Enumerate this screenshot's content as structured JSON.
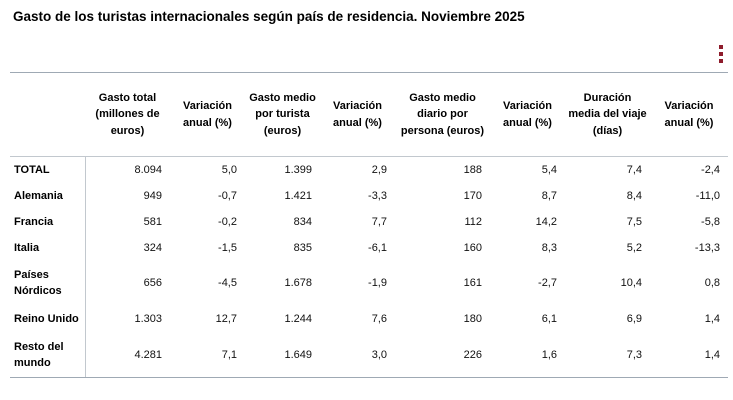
{
  "header": {
    "title": "Gasto de los turistas internacionales según país de residencia. Noviembre 2025",
    "menu_icon": "kebab-menu-icon",
    "accent_color": "#8e1c2c"
  },
  "chart_data": {
    "type": "table",
    "title": "Gasto de los turistas internacionales según país de residencia. Noviembre 2025",
    "columns": [
      "",
      "Gasto total (millones de euros)",
      "Variación anual (%)",
      "Gasto medio por turista (euros)",
      "Variación anual (%)",
      "Gasto medio diario por persona (euros)",
      "Variación anual (%)",
      "Duración media del viaje (días)",
      "Variación anual (%)"
    ],
    "rows": [
      {
        "label": "TOTAL",
        "values": [
          "8.094",
          "5,0",
          "1.399",
          "2,9",
          "188",
          "5,4",
          "7,4",
          "-2,4"
        ]
      },
      {
        "label": "Alemania",
        "values": [
          "949",
          "-0,7",
          "1.421",
          "-3,3",
          "170",
          "8,7",
          "8,4",
          "-11,0"
        ]
      },
      {
        "label": "Francia",
        "values": [
          "581",
          "-0,2",
          "834",
          "7,7",
          "112",
          "14,2",
          "7,5",
          "-5,8"
        ]
      },
      {
        "label": "Italia",
        "values": [
          "324",
          "-1,5",
          "835",
          "-6,1",
          "160",
          "8,3",
          "5,2",
          "-13,3"
        ]
      },
      {
        "label": "Países Nórdicos",
        "values": [
          "656",
          "-4,5",
          "1.678",
          "-1,9",
          "161",
          "-2,7",
          "10,4",
          "0,8"
        ]
      },
      {
        "label": "Reino Unido",
        "values": [
          "1.303",
          "12,7",
          "1.244",
          "7,6",
          "180",
          "6,1",
          "6,9",
          "1,4"
        ]
      },
      {
        "label": "Resto del mundo",
        "values": [
          "4.281",
          "7,1",
          "1.649",
          "3,0",
          "226",
          "1,6",
          "7,3",
          "1,4"
        ]
      }
    ]
  }
}
